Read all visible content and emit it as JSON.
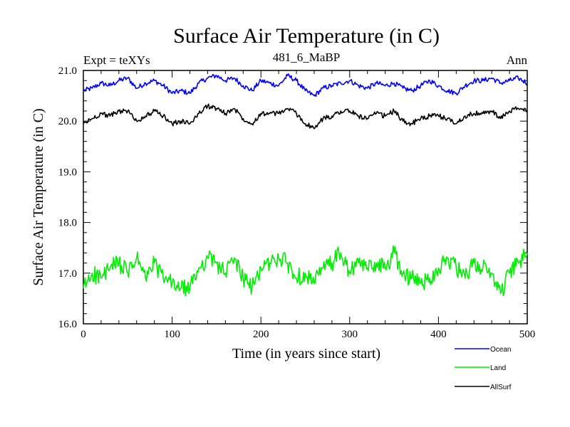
{
  "chart_data": {
    "type": "line",
    "title": "Surface Air Temperature (in C)",
    "subtitle_left": "Expt = teXYs",
    "subtitle_center": "481_6_MaBP",
    "subtitle_right": "Ann",
    "xlabel": "Time (in years since start)",
    "ylabel": "Surface Air Temperature (in C)",
    "xlim": [
      0,
      500
    ],
    "ylim": [
      16.0,
      21.0
    ],
    "xticks": [
      0,
      100,
      200,
      300,
      400,
      500
    ],
    "xtick_labels": [
      "0",
      "100",
      "200",
      "300",
      "400",
      "500"
    ],
    "yticks": [
      16.0,
      17.0,
      18.0,
      19.0,
      20.0,
      21.0
    ],
    "ytick_labels": [
      "16.0",
      "17.0",
      "18.0",
      "19.0",
      "20.0",
      "21.0"
    ],
    "legend_position": "bottom-right",
    "x": [
      0,
      10,
      20,
      30,
      40,
      50,
      60,
      70,
      80,
      90,
      100,
      110,
      120,
      130,
      140,
      150,
      160,
      170,
      180,
      190,
      200,
      210,
      220,
      230,
      240,
      250,
      260,
      270,
      280,
      290,
      300,
      310,
      320,
      330,
      340,
      350,
      360,
      370,
      380,
      390,
      400,
      410,
      420,
      430,
      440,
      450,
      460,
      470,
      480,
      490,
      500
    ],
    "series": [
      {
        "name": "Ocean",
        "color": "#0000ff",
        "values": [
          20.6,
          20.65,
          20.75,
          20.7,
          20.8,
          20.85,
          20.65,
          20.75,
          20.8,
          20.7,
          20.55,
          20.6,
          20.55,
          20.75,
          20.85,
          20.9,
          20.8,
          20.85,
          20.7,
          20.6,
          20.8,
          20.75,
          20.7,
          20.9,
          20.8,
          20.6,
          20.5,
          20.65,
          20.7,
          20.75,
          20.8,
          20.7,
          20.65,
          20.75,
          20.7,
          20.75,
          20.65,
          20.6,
          20.7,
          20.8,
          20.7,
          20.6,
          20.55,
          20.7,
          20.8,
          20.8,
          20.85,
          20.75,
          20.8,
          20.85,
          20.75
        ]
      },
      {
        "name": "Land",
        "color": "#00ee00",
        "values": [
          16.7,
          17.0,
          16.9,
          17.1,
          17.2,
          17.0,
          17.3,
          16.9,
          17.2,
          16.9,
          16.8,
          16.7,
          16.7,
          17.1,
          17.3,
          17.2,
          17.0,
          17.3,
          16.9,
          16.7,
          17.1,
          17.2,
          17.3,
          17.2,
          16.9,
          17.0,
          16.8,
          17.1,
          17.2,
          17.4,
          17.0,
          17.2,
          17.1,
          17.2,
          17.1,
          17.4,
          17.0,
          16.9,
          16.8,
          16.9,
          17.1,
          17.3,
          17.1,
          16.9,
          17.2,
          17.1,
          17.0,
          16.6,
          17.0,
          17.2,
          17.4
        ]
      },
      {
        "name": "AllSurf",
        "color": "#000000",
        "values": [
          19.95,
          20.05,
          20.15,
          20.1,
          20.2,
          20.2,
          20.0,
          20.1,
          20.2,
          20.1,
          19.95,
          20.0,
          19.95,
          20.15,
          20.3,
          20.25,
          20.15,
          20.25,
          20.05,
          19.95,
          20.15,
          20.15,
          20.15,
          20.25,
          20.15,
          19.95,
          19.85,
          20.05,
          20.1,
          20.2,
          20.2,
          20.1,
          20.05,
          20.15,
          20.1,
          20.2,
          20.0,
          19.95,
          20.05,
          20.1,
          20.1,
          20.05,
          19.95,
          20.1,
          20.15,
          20.15,
          20.2,
          20.05,
          20.2,
          20.25,
          20.2
        ]
      }
    ]
  }
}
